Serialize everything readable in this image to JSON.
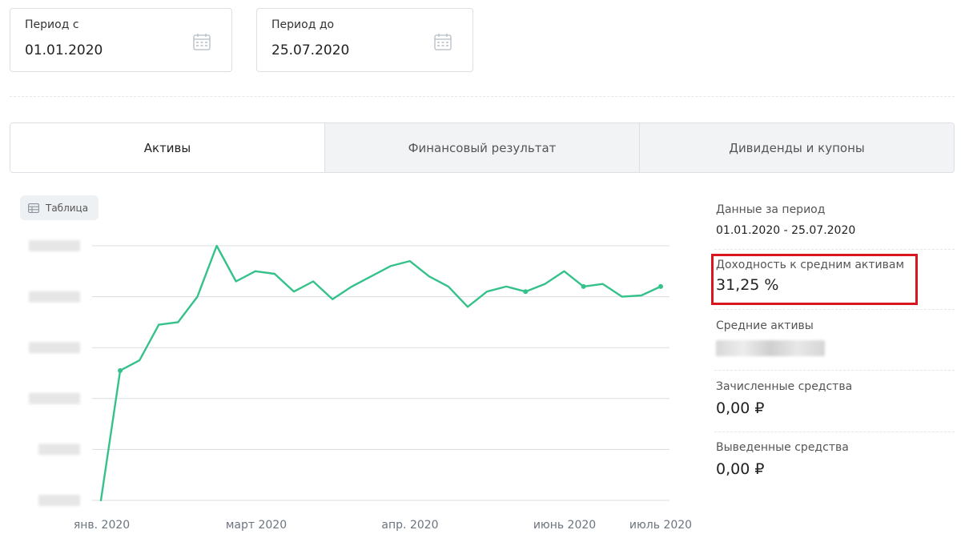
{
  "filters": {
    "from": {
      "label": "Период с",
      "value": "01.01.2020"
    },
    "to": {
      "label": "Период до",
      "value": "25.07.2020"
    }
  },
  "tabs": [
    {
      "label": "Активы",
      "active": true
    },
    {
      "label": "Финансовый результат",
      "active": false
    },
    {
      "label": "Дивиденды и купоны",
      "active": false
    }
  ],
  "table_button": {
    "label": "Таблица"
  },
  "chart_data": {
    "type": "line",
    "x_ticks": [
      "янв. 2020",
      "март 2020",
      "апр. 2020",
      "июнь 2020",
      "июль 2020"
    ],
    "y_tick_labels_visible": false,
    "grid": "horizontal",
    "series_color": "#35c28a",
    "points_index_scale": [
      0,
      100
    ],
    "series": [
      {
        "values": [
          0,
          51,
          55,
          69,
          70,
          80,
          100,
          86,
          90,
          89,
          82,
          86,
          79,
          84,
          88,
          92,
          94,
          88,
          84,
          76,
          82,
          84,
          82,
          85,
          90,
          84,
          85,
          80,
          80.5,
          84
        ],
        "markers": [
          1,
          22,
          25,
          29
        ]
      }
    ]
  },
  "stats": {
    "period": {
      "label": "Данные за период",
      "value": "01.01.2020 - 25.07.2020"
    },
    "yield": {
      "label": "Доходность к средним активам",
      "value": "31,25 %"
    },
    "avg_assets": {
      "label": "Средние активы"
    },
    "credited": {
      "label": "Зачисленные средства",
      "value": "0,00 ₽"
    },
    "withdrawn": {
      "label": "Выведенные средства",
      "value": "0,00 ₽"
    }
  },
  "colors": {
    "accent": "#35c28a",
    "highlight": "#d9161f"
  }
}
